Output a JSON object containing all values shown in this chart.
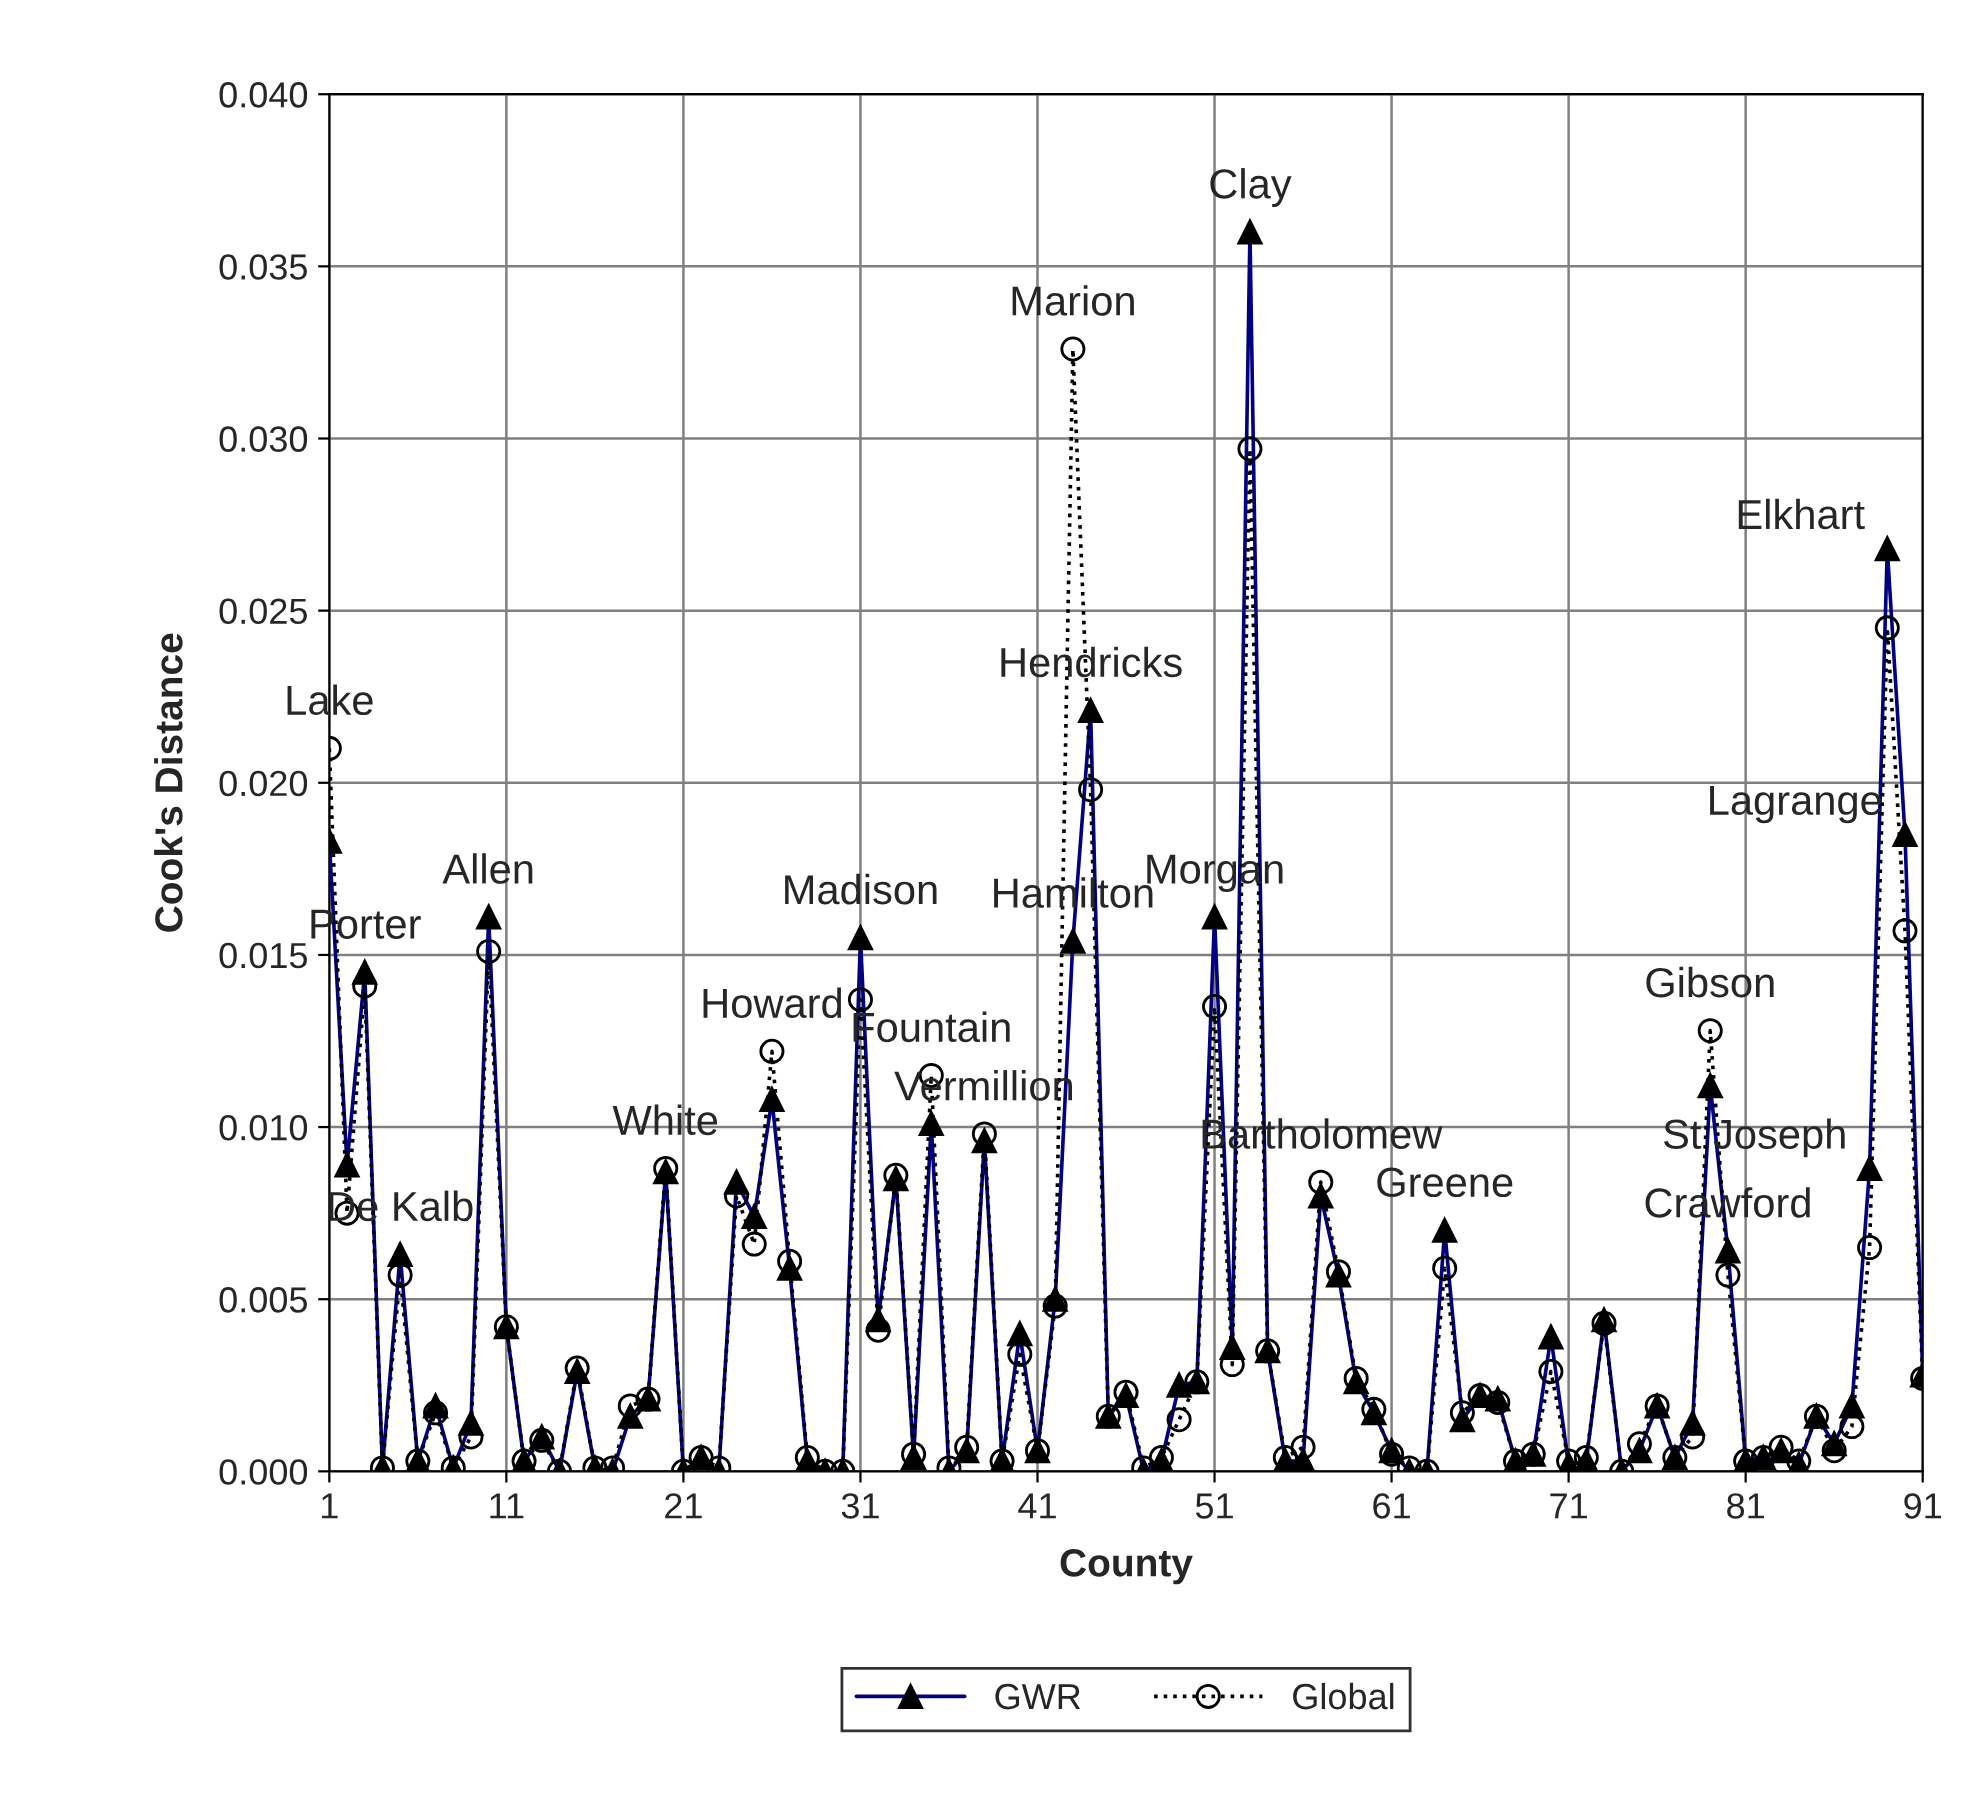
{
  "chart_data": {
    "type": "line",
    "xlabel": "County",
    "ylabel": "Cook's Distance",
    "x": [
      1,
      2,
      3,
      4,
      5,
      6,
      7,
      8,
      9,
      10,
      11,
      12,
      13,
      14,
      15,
      16,
      17,
      18,
      19,
      20,
      21,
      22,
      23,
      24,
      25,
      26,
      27,
      28,
      29,
      30,
      31,
      32,
      33,
      34,
      35,
      36,
      37,
      38,
      39,
      40,
      41,
      42,
      43,
      44,
      45,
      46,
      47,
      48,
      49,
      50,
      51,
      52,
      53,
      54,
      55,
      56,
      57,
      58,
      59,
      60,
      61,
      62,
      63,
      64,
      65,
      66,
      67,
      68,
      69,
      70,
      71,
      72,
      73,
      74,
      75,
      76,
      77,
      78,
      79,
      80,
      81,
      82,
      83,
      84,
      85,
      86,
      87,
      88,
      89,
      90,
      91
    ],
    "series": [
      {
        "name": "GWR",
        "color": "#000080",
        "marker": "triangle",
        "line_style": "solid",
        "values": [
          0.0183,
          0.0089,
          0.0145,
          0.0001,
          0.0063,
          0.0003,
          0.0019,
          0.0001,
          0.0014,
          0.0161,
          0.0042,
          0.0003,
          0.001,
          0.0,
          0.0029,
          0.0001,
          0.0,
          0.0016,
          0.0021,
          0.0087,
          0.0,
          0.0004,
          0.0,
          0.0084,
          0.0074,
          0.0108,
          0.0059,
          0.0003,
          0.0,
          0.0,
          0.0155,
          0.0044,
          0.0085,
          0.0004,
          0.0101,
          0.0,
          0.0006,
          0.0096,
          0.0003,
          0.004,
          0.0006,
          0.005,
          0.0154,
          0.0221,
          0.0016,
          0.0022,
          0.0,
          0.0003,
          0.0025,
          0.0026,
          0.0161,
          0.0036,
          0.036,
          0.0035,
          0.0003,
          0.0003,
          0.008,
          0.0057,
          0.0026,
          0.0017,
          0.0006,
          0.0,
          0.0,
          0.007,
          0.0015,
          0.0022,
          0.0021,
          0.0003,
          0.0005,
          0.0039,
          0.0002,
          0.0003,
          0.0044,
          0.0,
          0.0006,
          0.0019,
          0.0004,
          0.0014,
          0.0112,
          0.0064,
          0.0003,
          0.0004,
          0.0006,
          0.0002,
          0.0016,
          0.0008,
          0.0019,
          0.0088,
          0.0268,
          0.0185,
          0.0028
        ]
      },
      {
        "name": "Global",
        "color": "#000000",
        "marker": "circle",
        "line_style": "dotted",
        "values": [
          0.021,
          0.0075,
          0.0141,
          0.0001,
          0.0057,
          0.0003,
          0.0017,
          0.0001,
          0.001,
          0.0151,
          0.0042,
          0.0003,
          0.0009,
          0.0,
          0.003,
          0.0001,
          0.0001,
          0.0019,
          0.0021,
          0.0088,
          0.0,
          0.0004,
          0.0001,
          0.008,
          0.0066,
          0.0122,
          0.0061,
          0.0004,
          0.0,
          0.0,
          0.0137,
          0.0041,
          0.0086,
          0.0005,
          0.0115,
          0.0001,
          0.0007,
          0.0098,
          0.0003,
          0.0034,
          0.0006,
          0.0048,
          0.0326,
          0.0198,
          0.0016,
          0.0023,
          0.0001,
          0.0004,
          0.0015,
          0.0026,
          0.0135,
          0.0031,
          0.0297,
          0.0035,
          0.0004,
          0.0007,
          0.0084,
          0.0058,
          0.0027,
          0.0018,
          0.0005,
          0.0001,
          0.0,
          0.0059,
          0.0017,
          0.0022,
          0.002,
          0.0003,
          0.0005,
          0.0029,
          0.0003,
          0.0004,
          0.0043,
          0.0,
          0.0008,
          0.0019,
          0.0004,
          0.001,
          0.0128,
          0.0057,
          0.0003,
          0.0004,
          0.0007,
          0.0003,
          0.0016,
          0.0006,
          0.0013,
          0.0065,
          0.0245,
          0.0157,
          0.0027
        ]
      }
    ],
    "xlim": [
      1,
      91
    ],
    "xticks": [
      1,
      11,
      21,
      31,
      41,
      51,
      61,
      71,
      81,
      91
    ],
    "ylim": [
      0,
      0.04
    ],
    "yticks": [
      {
        "value": 0,
        "label": "0.000"
      },
      {
        "value": 0.005,
        "label": "0.005"
      },
      {
        "value": 0.01,
        "label": "0.010"
      },
      {
        "value": 0.015,
        "label": "0.015"
      },
      {
        "value": 0.02,
        "label": "0.020"
      },
      {
        "value": 0.025,
        "label": "0.025"
      },
      {
        "value": 0.03,
        "label": "0.030"
      },
      {
        "value": 0.035,
        "label": "0.035"
      },
      {
        "value": 0.04,
        "label": "0.040"
      }
    ],
    "grid": true,
    "legend": "bottom",
    "annotations": [
      {
        "text": "Lake",
        "x": 1,
        "y": 0.021
      },
      {
        "text": "Porter",
        "x": 3,
        "y": 0.0145
      },
      {
        "text": "De Kalb",
        "x": 5,
        "y": 0.0063
      },
      {
        "text": "Allen",
        "x": 10,
        "y": 0.0161
      },
      {
        "text": "White",
        "x": 20,
        "y": 0.0088
      },
      {
        "text": "Howard",
        "x": 26,
        "y": 0.0122
      },
      {
        "text": "Madison",
        "x": 31,
        "y": 0.0155
      },
      {
        "text": "Fountain",
        "x": 35,
        "y": 0.0115
      },
      {
        "text": "Vermillion",
        "x": 38,
        "y": 0.0098
      },
      {
        "text": "Hamilton",
        "x": 43,
        "y": 0.0154
      },
      {
        "text": "Marion",
        "x": 43,
        "y": 0.0326
      },
      {
        "text": "Hendricks",
        "x": 44,
        "y": 0.0221
      },
      {
        "text": "Morgan",
        "x": 51,
        "y": 0.0161
      },
      {
        "text": "Clay",
        "x": 53,
        "y": 0.036
      },
      {
        "text": "Bartholomew",
        "x": 57,
        "y": 0.0084
      },
      {
        "text": "Greene",
        "x": 64,
        "y": 0.007
      },
      {
        "text": "Gibson",
        "x": 79,
        "y": 0.0128
      },
      {
        "text": "Crawford",
        "x": 80,
        "y": 0.0064
      },
      {
        "text": "St Joseph",
        "x": 88,
        "y": 0.0088
      },
      {
        "text": "Elkhart",
        "x": 89,
        "y": 0.0268
      },
      {
        "text": "Lagrange",
        "x": 90,
        "y": 0.0185
      }
    ]
  }
}
